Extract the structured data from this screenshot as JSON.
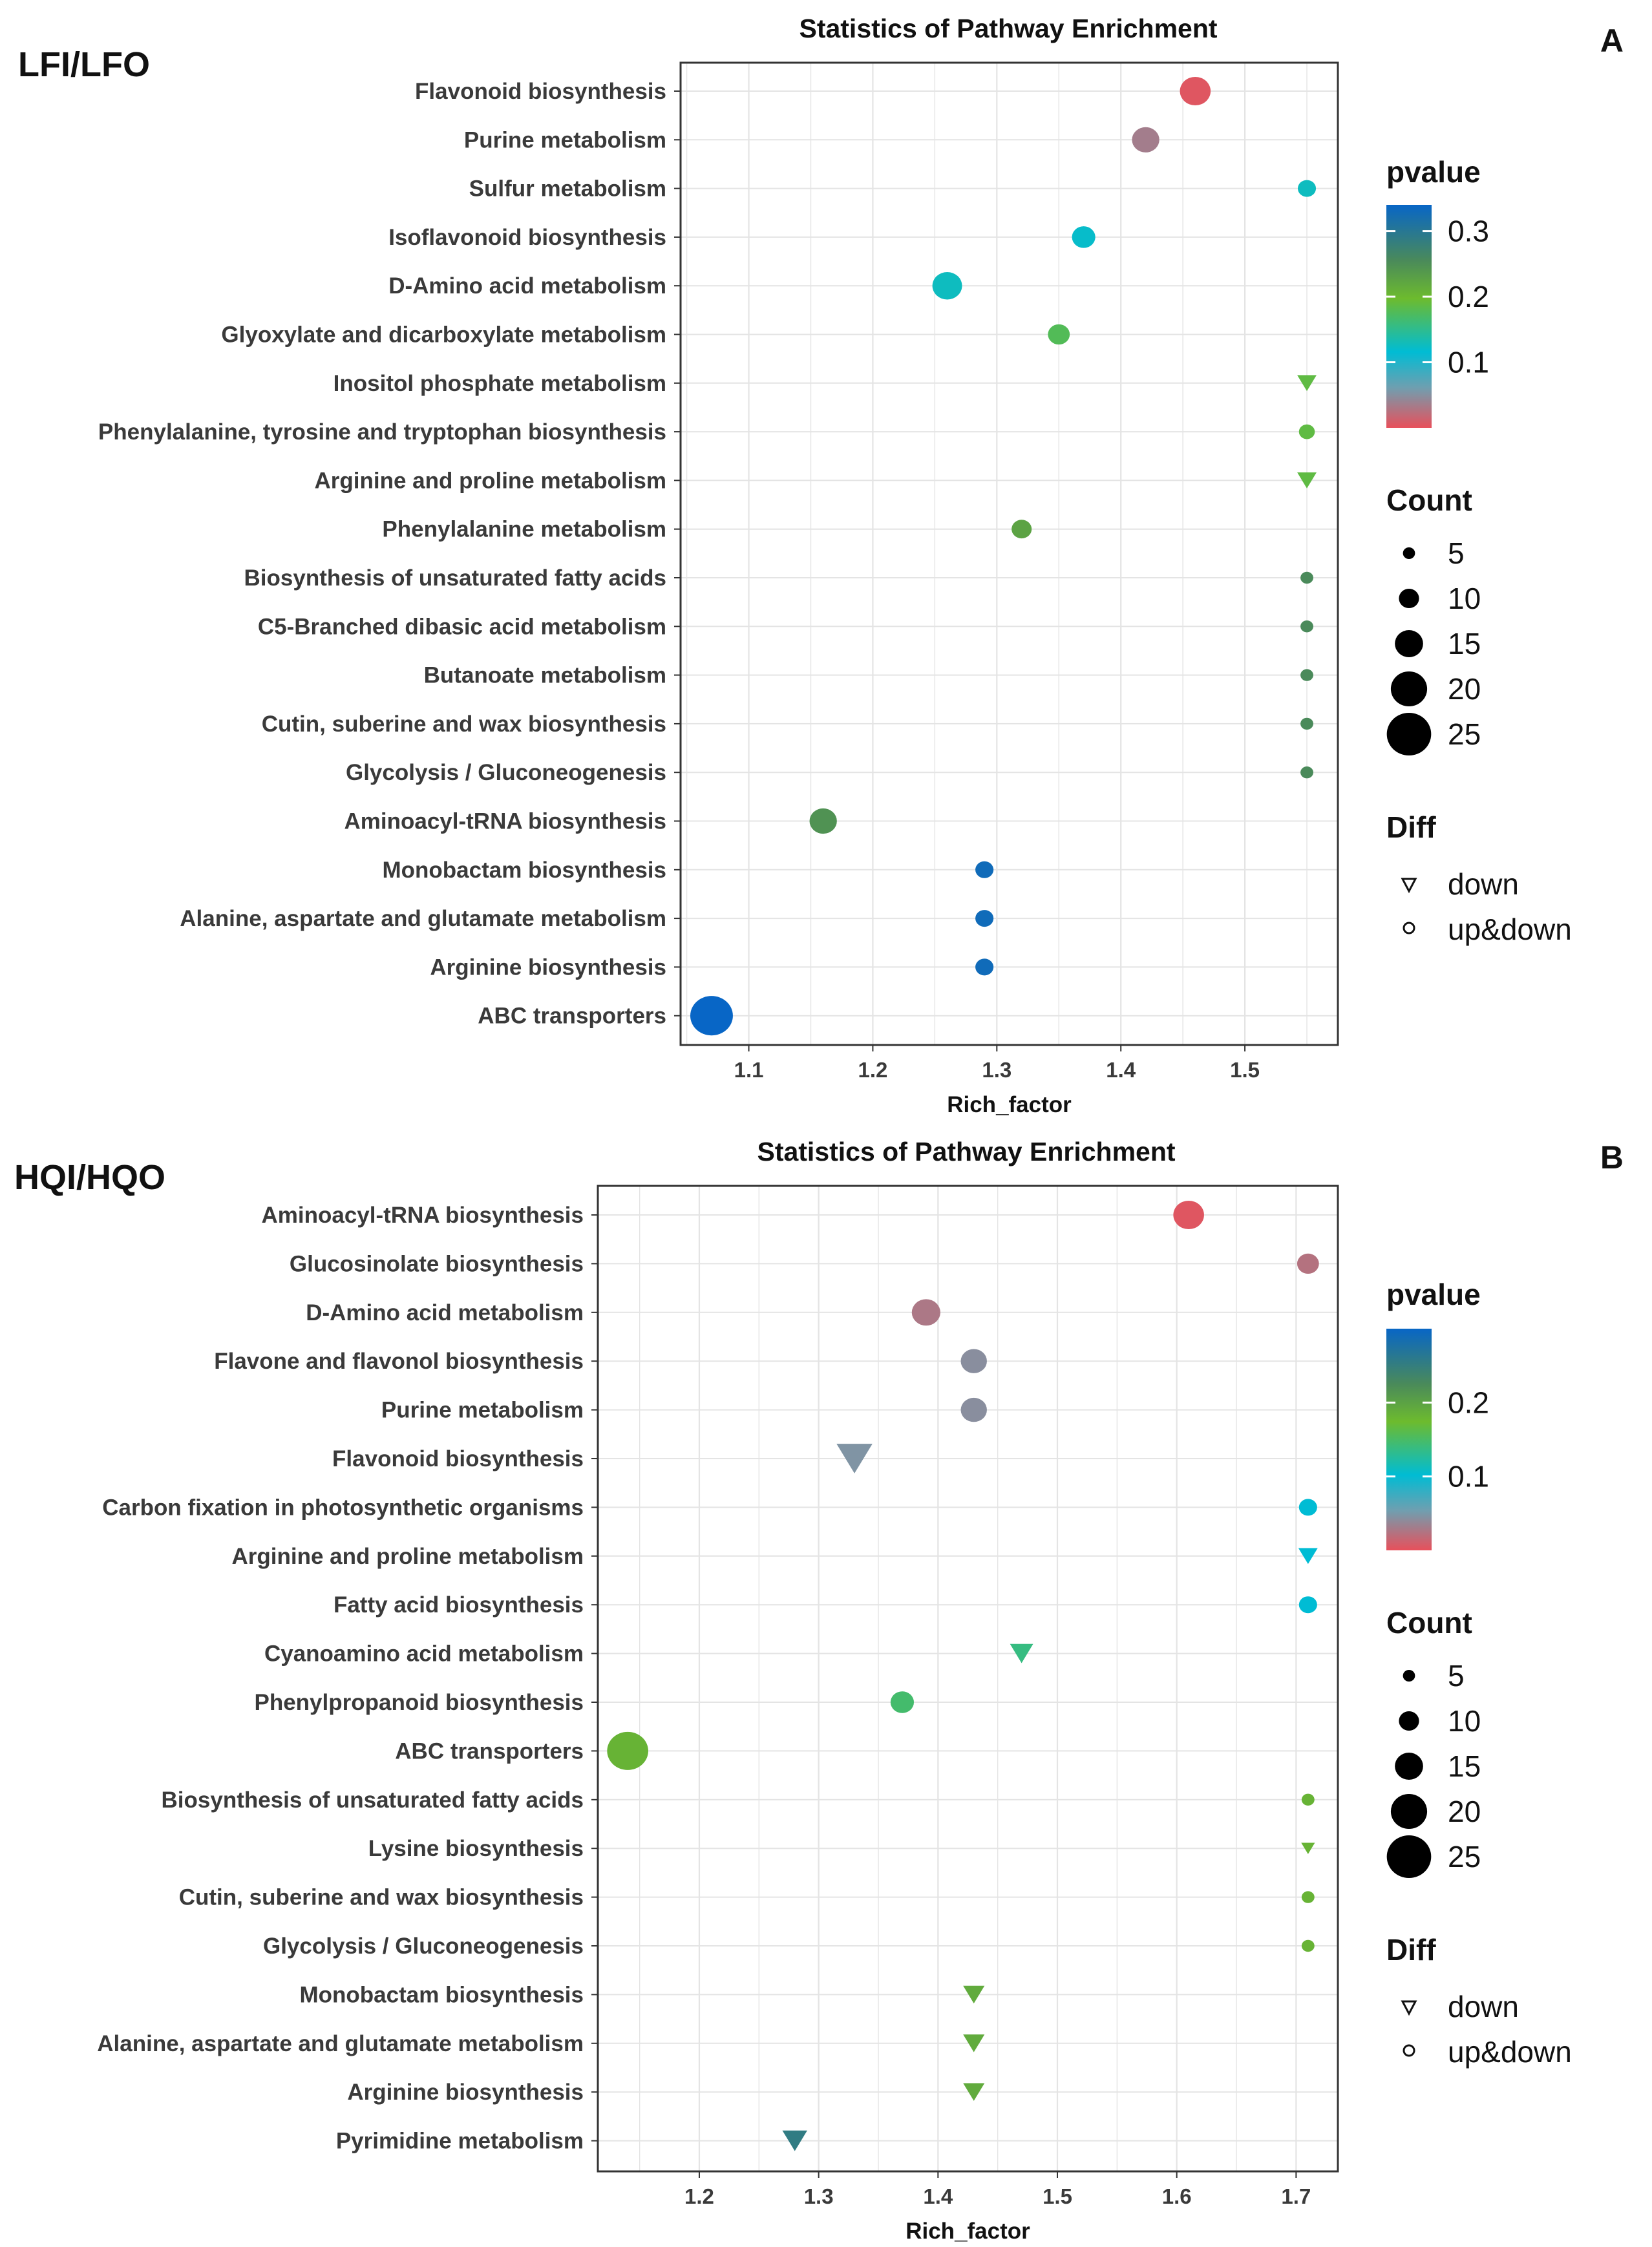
{
  "chart_data": [
    {
      "type": "scatter",
      "panel_tag": "A",
      "comparison_label": "LFI/LFO",
      "title": "Statistics of Pathway Enrichment",
      "xlabel": "Rich_factor",
      "ylabel": "",
      "xlim": [
        1.045,
        1.575
      ],
      "xticks": [
        1.1,
        1.2,
        1.3,
        1.4,
        1.5
      ],
      "categories": [
        "Flavonoid biosynthesis",
        "Purine metabolism",
        "Sulfur metabolism",
        "Isoflavonoid biosynthesis",
        "D-Amino acid metabolism",
        "Glyoxylate and dicarboxylate metabolism",
        "Inositol phosphate metabolism",
        "Phenylalanine, tyrosine and tryptophan biosynthesis",
        "Arginine and proline metabolism",
        "Phenylalanine metabolism",
        "Biosynthesis of unsaturated fatty acids",
        "C5-Branched dibasic acid metabolism",
        "Butanoate metabolism",
        "Cutin, suberine and wax biosynthesis",
        "Glycolysis / Gluconeogenesis",
        "Aminoacyl-tRNA biosynthesis",
        "Monobactam biosynthesis",
        "Alanine, aspartate and glutamate metabolism",
        "Arginine biosynthesis",
        "ABC transporters"
      ],
      "points": [
        {
          "pathway": "Flavonoid biosynthesis",
          "rich_factor": 1.46,
          "pvalue": 0.005,
          "count": 12,
          "diff": "up&down"
        },
        {
          "pathway": "Purine metabolism",
          "rich_factor": 1.42,
          "pvalue": 0.04,
          "count": 9,
          "diff": "up&down"
        },
        {
          "pathway": "Sulfur metabolism",
          "rich_factor": 1.55,
          "pvalue": 0.12,
          "count": 3,
          "diff": "up&down"
        },
        {
          "pathway": "Isoflavonoid biosynthesis",
          "rich_factor": 1.37,
          "pvalue": 0.115,
          "count": 6,
          "diff": "up&down"
        },
        {
          "pathway": "D-Amino acid metabolism",
          "rich_factor": 1.26,
          "pvalue": 0.12,
          "count": 11,
          "diff": "up&down"
        },
        {
          "pathway": "Glyoxylate and dicarboxylate metabolism",
          "rich_factor": 1.35,
          "pvalue": 0.17,
          "count": 5,
          "diff": "up&down"
        },
        {
          "pathway": "Inositol phosphate metabolism",
          "rich_factor": 1.55,
          "pvalue": 0.18,
          "count": 3,
          "diff": "down"
        },
        {
          "pathway": "Phenylalanine, tyrosine and tryptophan biosynthesis",
          "rich_factor": 1.55,
          "pvalue": 0.18,
          "count": 2,
          "diff": "up&down"
        },
        {
          "pathway": "Arginine and proline metabolism",
          "rich_factor": 1.55,
          "pvalue": 0.18,
          "count": 3,
          "diff": "down"
        },
        {
          "pathway": "Phenylalanine metabolism",
          "rich_factor": 1.32,
          "pvalue": 0.22,
          "count": 4,
          "diff": "up&down"
        },
        {
          "pathway": "Biosynthesis of unsaturated fatty acids",
          "rich_factor": 1.55,
          "pvalue": 0.25,
          "count": 1,
          "diff": "up&down"
        },
        {
          "pathway": "C5-Branched dibasic acid metabolism",
          "rich_factor": 1.55,
          "pvalue": 0.25,
          "count": 1,
          "diff": "up&down"
        },
        {
          "pathway": "Butanoate metabolism",
          "rich_factor": 1.55,
          "pvalue": 0.25,
          "count": 1,
          "diff": "up&down"
        },
        {
          "pathway": "Cutin, suberine and wax biosynthesis",
          "rich_factor": 1.55,
          "pvalue": 0.25,
          "count": 1,
          "diff": "up&down"
        },
        {
          "pathway": "Glycolysis / Gluconeogenesis",
          "rich_factor": 1.55,
          "pvalue": 0.25,
          "count": 1,
          "diff": "up&down"
        },
        {
          "pathway": "Aminoacyl-tRNA biosynthesis",
          "rich_factor": 1.16,
          "pvalue": 0.24,
          "count": 9,
          "diff": "up&down"
        },
        {
          "pathway": "Monobactam biosynthesis",
          "rich_factor": 1.29,
          "pvalue": 0.32,
          "count": 3,
          "diff": "up&down"
        },
        {
          "pathway": "Alanine, aspartate and glutamate metabolism",
          "rich_factor": 1.29,
          "pvalue": 0.32,
          "count": 3,
          "diff": "up&down"
        },
        {
          "pathway": "Arginine biosynthesis",
          "rich_factor": 1.29,
          "pvalue": 0.32,
          "count": 3,
          "diff": "up&down"
        },
        {
          "pathway": "ABC transporters",
          "rich_factor": 1.07,
          "pvalue": 0.33,
          "count": 26,
          "diff": "up&down"
        }
      ],
      "legend_pvalue": {
        "title": "pvalue",
        "ticks": [
          "0.3",
          "0.2",
          "0.1"
        ],
        "tick_values": [
          0.3,
          0.2,
          0.1
        ],
        "range": [
          0,
          0.34
        ]
      },
      "legend_count": {
        "title": "Count",
        "values": [
          5,
          10,
          15,
          20,
          25
        ],
        "labels": [
          "5",
          "10",
          "15",
          "20",
          "25"
        ]
      },
      "legend_diff": {
        "title": "Diff",
        "items": [
          "down",
          "up&down"
        ]
      }
    },
    {
      "type": "scatter",
      "panel_tag": "B",
      "comparison_label": "HQI/HQO",
      "title": "Statistics of Pathway Enrichment",
      "xlabel": "Rich_factor",
      "ylabel": "",
      "xlim": [
        1.115,
        1.735
      ],
      "xticks": [
        1.2,
        1.3,
        1.4,
        1.5,
        1.6,
        1.7
      ],
      "categories": [
        "Aminoacyl-tRNA biosynthesis",
        "Glucosinolate biosynthesis",
        "D-Amino acid metabolism",
        "Flavone and flavonol biosynthesis",
        "Purine metabolism",
        "Flavonoid biosynthesis",
        "Carbon fixation in photosynthetic organisms",
        "Arginine and proline metabolism",
        "Fatty acid biosynthesis",
        "Cyanoamino acid metabolism",
        "Phenylpropanoid biosynthesis",
        "ABC transporters",
        "Biosynthesis of unsaturated fatty acids",
        "Lysine biosynthesis",
        "Cutin, suberine and wax biosynthesis",
        "Glycolysis / Gluconeogenesis",
        "Monobactam biosynthesis",
        "Alanine, aspartate and glutamate metabolism",
        "Arginine biosynthesis",
        "Pyrimidine metabolism"
      ],
      "points": [
        {
          "pathway": "Aminoacyl-tRNA biosynthesis",
          "rich_factor": 1.61,
          "pvalue": 0.005,
          "count": 12,
          "diff": "up&down"
        },
        {
          "pathway": "Glucosinolate biosynthesis",
          "rich_factor": 1.71,
          "pvalue": 0.03,
          "count": 5,
          "diff": "up&down"
        },
        {
          "pathway": "D-Amino acid metabolism",
          "rich_factor": 1.39,
          "pvalue": 0.035,
          "count": 10,
          "diff": "up&down"
        },
        {
          "pathway": "Flavone and flavonol biosynthesis",
          "rich_factor": 1.43,
          "pvalue": 0.055,
          "count": 8,
          "diff": "up&down"
        },
        {
          "pathway": "Purine metabolism",
          "rich_factor": 1.43,
          "pvalue": 0.055,
          "count": 8,
          "diff": "up&down"
        },
        {
          "pathway": "Flavonoid biosynthesis",
          "rich_factor": 1.33,
          "pvalue": 0.06,
          "count": 15,
          "diff": "down"
        },
        {
          "pathway": "Carbon fixation in photosynthetic organisms",
          "rich_factor": 1.71,
          "pvalue": 0.11,
          "count": 3,
          "diff": "up&down"
        },
        {
          "pathway": "Arginine and proline metabolism",
          "rich_factor": 1.71,
          "pvalue": 0.11,
          "count": 3,
          "diff": "down"
        },
        {
          "pathway": "Fatty acid biosynthesis",
          "rich_factor": 1.71,
          "pvalue": 0.11,
          "count": 3,
          "diff": "up&down"
        },
        {
          "pathway": "Cyanoamino acid metabolism",
          "rich_factor": 1.47,
          "pvalue": 0.15,
          "count": 5,
          "diff": "down"
        },
        {
          "pathway": "Phenylpropanoid biosynthesis",
          "rich_factor": 1.37,
          "pvalue": 0.16,
          "count": 6,
          "diff": "up&down"
        },
        {
          "pathway": "ABC transporters",
          "rich_factor": 1.14,
          "pvalue": 0.2,
          "count": 24,
          "diff": "up&down"
        },
        {
          "pathway": "Biosynthesis of unsaturated fatty acids",
          "rich_factor": 1.71,
          "pvalue": 0.2,
          "count": 1,
          "diff": "up&down"
        },
        {
          "pathway": "Lysine biosynthesis",
          "rich_factor": 1.71,
          "pvalue": 0.2,
          "count": 1,
          "diff": "down"
        },
        {
          "pathway": "Cutin, suberine and wax biosynthesis",
          "rich_factor": 1.71,
          "pvalue": 0.2,
          "count": 1,
          "diff": "up&down"
        },
        {
          "pathway": "Glycolysis / Gluconeogenesis",
          "rich_factor": 1.71,
          "pvalue": 0.2,
          "count": 1,
          "diff": "up&down"
        },
        {
          "pathway": "Monobactam biosynthesis",
          "rich_factor": 1.43,
          "pvalue": 0.21,
          "count": 4,
          "diff": "down"
        },
        {
          "pathway": "Alanine, aspartate and glutamate metabolism",
          "rich_factor": 1.43,
          "pvalue": 0.21,
          "count": 4,
          "diff": "down"
        },
        {
          "pathway": "Arginine biosynthesis",
          "rich_factor": 1.43,
          "pvalue": 0.21,
          "count": 4,
          "diff": "down"
        },
        {
          "pathway": "Pyrimidine metabolism",
          "rich_factor": 1.28,
          "pvalue": 0.28,
          "count": 6,
          "diff": "down"
        }
      ],
      "legend_pvalue": {
        "title": "pvalue",
        "ticks": [
          "0.2",
          "0.1"
        ],
        "tick_values": [
          0.2,
          0.1
        ],
        "range": [
          0,
          0.3
        ]
      },
      "legend_count": {
        "title": "Count",
        "values": [
          5,
          10,
          15,
          20,
          25
        ],
        "labels": [
          "5",
          "10",
          "15",
          "20",
          "25"
        ]
      },
      "legend_diff": {
        "title": "Diff",
        "items": [
          "down",
          "up&down"
        ]
      }
    }
  ],
  "colors": {
    "gradient_low": "#E8505B",
    "gradient_mid1": "#00BCD4",
    "gradient_mid2": "#6DBB2E",
    "gradient_mid3": "#4A8A5A",
    "gradient_high": "#0866C6",
    "panel_border": "#333333",
    "grid": "#e4e4e4"
  }
}
